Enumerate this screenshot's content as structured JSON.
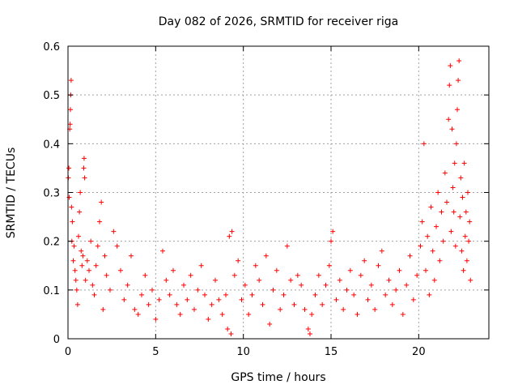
{
  "chart_data": {
    "type": "scatter",
    "title": "Day 082 of 2026, SRMTID for receiver riga",
    "xlabel": "GPS time / hours",
    "ylabel": "SRMTID / TECUs",
    "xlim": [
      0,
      24
    ],
    "ylim": [
      0,
      0.6
    ],
    "xticks": [
      0,
      5,
      10,
      15,
      20
    ],
    "xtick_labels": [
      "0",
      "5",
      "10",
      "15",
      "20"
    ],
    "yticks": [
      0,
      0.1,
      0.2,
      0.3,
      0.4,
      0.5,
      0.6
    ],
    "ytick_labels": [
      "0",
      "0.1",
      "0.2",
      "0.3",
      "0.4",
      "0.5",
      "0.6"
    ],
    "grid": true,
    "marker": "+",
    "series": [
      {
        "name": "SRMTID",
        "color": "#ff0000",
        "points": [
          [
            0.02,
            0.33
          ],
          [
            0.05,
            0.35
          ],
          [
            0.07,
            0.29
          ],
          [
            0.1,
            0.43
          ],
          [
            0.12,
            0.44
          ],
          [
            0.14,
            0.47
          ],
          [
            0.16,
            0.5
          ],
          [
            0.18,
            0.53
          ],
          [
            0.2,
            0.27
          ],
          [
            0.22,
            0.2
          ],
          [
            0.25,
            0.24
          ],
          [
            0.3,
            0.16
          ],
          [
            0.35,
            0.19
          ],
          [
            0.4,
            0.14
          ],
          [
            0.45,
            0.12
          ],
          [
            0.5,
            0.1
          ],
          [
            0.55,
            0.07
          ],
          [
            0.6,
            0.21
          ],
          [
            0.65,
            0.26
          ],
          [
            0.7,
            0.3
          ],
          [
            0.75,
            0.18
          ],
          [
            0.8,
            0.15
          ],
          [
            0.85,
            0.17
          ],
          [
            0.9,
            0.35
          ],
          [
            0.92,
            0.37
          ],
          [
            0.95,
            0.33
          ],
          [
            1.0,
            0.12
          ],
          [
            1.1,
            0.16
          ],
          [
            1.2,
            0.14
          ],
          [
            1.3,
            0.2
          ],
          [
            1.4,
            0.11
          ],
          [
            1.5,
            0.09
          ],
          [
            1.6,
            0.15
          ],
          [
            1.7,
            0.19
          ],
          [
            1.8,
            0.24
          ],
          [
            1.9,
            0.28
          ],
          [
            2.0,
            0.06
          ],
          [
            2.1,
            0.17
          ],
          [
            2.2,
            0.13
          ],
          [
            2.4,
            0.1
          ],
          [
            2.6,
            0.22
          ],
          [
            2.8,
            0.19
          ],
          [
            3.0,
            0.14
          ],
          [
            3.2,
            0.08
          ],
          [
            3.4,
            0.11
          ],
          [
            3.6,
            0.17
          ],
          [
            3.8,
            0.06
          ],
          [
            4.0,
            0.05
          ],
          [
            4.2,
            0.09
          ],
          [
            4.4,
            0.13
          ],
          [
            4.6,
            0.07
          ],
          [
            4.8,
            0.1
          ],
          [
            5.0,
            0.04
          ],
          [
            5.2,
            0.08
          ],
          [
            5.4,
            0.18
          ],
          [
            5.6,
            0.12
          ],
          [
            5.8,
            0.09
          ],
          [
            6.0,
            0.14
          ],
          [
            6.2,
            0.07
          ],
          [
            6.4,
            0.05
          ],
          [
            6.6,
            0.11
          ],
          [
            6.8,
            0.08
          ],
          [
            7.0,
            0.13
          ],
          [
            7.2,
            0.06
          ],
          [
            7.4,
            0.1
          ],
          [
            7.6,
            0.15
          ],
          [
            7.8,
            0.09
          ],
          [
            8.0,
            0.04
          ],
          [
            8.2,
            0.07
          ],
          [
            8.4,
            0.12
          ],
          [
            8.6,
            0.08
          ],
          [
            8.8,
            0.05
          ],
          [
            9.0,
            0.09
          ],
          [
            9.1,
            0.02
          ],
          [
            9.2,
            0.21
          ],
          [
            9.3,
            0.01
          ],
          [
            9.35,
            0.22
          ],
          [
            9.5,
            0.13
          ],
          [
            9.7,
            0.16
          ],
          [
            9.9,
            0.08
          ],
          [
            10.1,
            0.11
          ],
          [
            10.3,
            0.05
          ],
          [
            10.5,
            0.09
          ],
          [
            10.7,
            0.15
          ],
          [
            10.9,
            0.12
          ],
          [
            11.1,
            0.07
          ],
          [
            11.3,
            0.17
          ],
          [
            11.5,
            0.03
          ],
          [
            11.7,
            0.1
          ],
          [
            11.9,
            0.14
          ],
          [
            12.1,
            0.06
          ],
          [
            12.3,
            0.09
          ],
          [
            12.5,
            0.19
          ],
          [
            12.7,
            0.12
          ],
          [
            12.9,
            0.07
          ],
          [
            13.1,
            0.13
          ],
          [
            13.3,
            0.11
          ],
          [
            13.5,
            0.06
          ],
          [
            13.7,
            0.02
          ],
          [
            13.8,
            0.01
          ],
          [
            13.9,
            0.05
          ],
          [
            14.1,
            0.09
          ],
          [
            14.3,
            0.13
          ],
          [
            14.5,
            0.07
          ],
          [
            14.7,
            0.11
          ],
          [
            14.9,
            0.15
          ],
          [
            15.0,
            0.2
          ],
          [
            15.1,
            0.22
          ],
          [
            15.3,
            0.08
          ],
          [
            15.5,
            0.12
          ],
          [
            15.7,
            0.06
          ],
          [
            15.9,
            0.1
          ],
          [
            16.1,
            0.14
          ],
          [
            16.3,
            0.09
          ],
          [
            16.5,
            0.05
          ],
          [
            16.7,
            0.13
          ],
          [
            16.9,
            0.16
          ],
          [
            17.1,
            0.08
          ],
          [
            17.3,
            0.11
          ],
          [
            17.5,
            0.06
          ],
          [
            17.7,
            0.15
          ],
          [
            17.9,
            0.18
          ],
          [
            18.1,
            0.09
          ],
          [
            18.3,
            0.12
          ],
          [
            18.5,
            0.07
          ],
          [
            18.7,
            0.1
          ],
          [
            18.9,
            0.14
          ],
          [
            19.1,
            0.05
          ],
          [
            19.3,
            0.11
          ],
          [
            19.5,
            0.17
          ],
          [
            19.7,
            0.08
          ],
          [
            19.9,
            0.13
          ],
          [
            20.1,
            0.19
          ],
          [
            20.2,
            0.24
          ],
          [
            20.3,
            0.4
          ],
          [
            20.4,
            0.14
          ],
          [
            20.5,
            0.21
          ],
          [
            20.6,
            0.09
          ],
          [
            20.7,
            0.27
          ],
          [
            20.8,
            0.18
          ],
          [
            20.9,
            0.12
          ],
          [
            21.0,
            0.23
          ],
          [
            21.1,
            0.3
          ],
          [
            21.2,
            0.16
          ],
          [
            21.3,
            0.26
          ],
          [
            21.4,
            0.2
          ],
          [
            21.5,
            0.34
          ],
          [
            21.6,
            0.28
          ],
          [
            21.7,
            0.45
          ],
          [
            21.75,
            0.52
          ],
          [
            21.8,
            0.56
          ],
          [
            21.85,
            0.22
          ],
          [
            21.9,
            0.43
          ],
          [
            21.95,
            0.31
          ],
          [
            22.0,
            0.26
          ],
          [
            22.05,
            0.36
          ],
          [
            22.1,
            0.19
          ],
          [
            22.15,
            0.4
          ],
          [
            22.2,
            0.47
          ],
          [
            22.25,
            0.53
          ],
          [
            22.3,
            0.57
          ],
          [
            22.35,
            0.25
          ],
          [
            22.4,
            0.33
          ],
          [
            22.45,
            0.18
          ],
          [
            22.5,
            0.29
          ],
          [
            22.55,
            0.14
          ],
          [
            22.6,
            0.36
          ],
          [
            22.65,
            0.21
          ],
          [
            22.7,
            0.26
          ],
          [
            22.75,
            0.16
          ],
          [
            22.8,
            0.3
          ],
          [
            22.85,
            0.2
          ],
          [
            22.9,
            0.24
          ],
          [
            22.95,
            0.12
          ]
        ]
      }
    ]
  }
}
